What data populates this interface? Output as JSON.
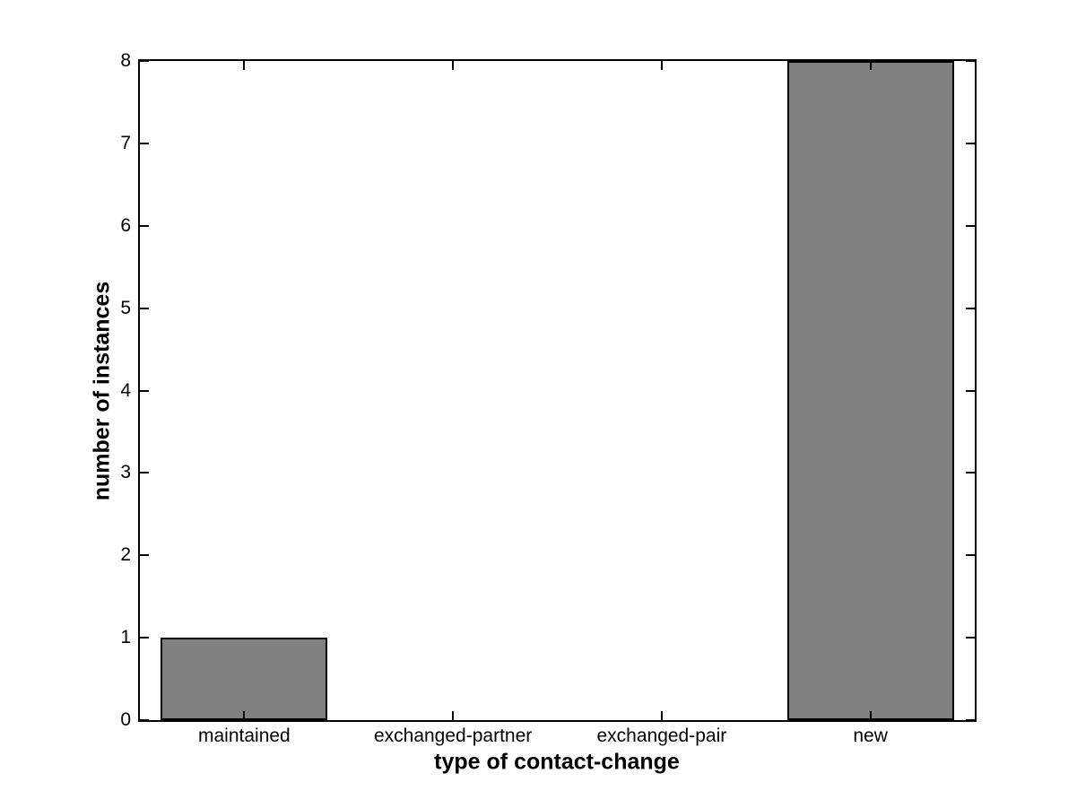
{
  "chart_data": {
    "type": "bar",
    "categories": [
      "maintained",
      "exchanged-partner",
      "exchanged-pair",
      "new"
    ],
    "values": [
      1,
      0,
      0,
      8
    ],
    "title": "",
    "xlabel": "type of contact-change",
    "ylabel": "number of instances",
    "ylim": [
      0,
      8
    ],
    "yticks": [
      0,
      1,
      2,
      3,
      4,
      5,
      6,
      7,
      8
    ],
    "bar_width_fraction": 0.8,
    "bar_color": "#808080",
    "bar_edge_color": "#000000",
    "axis_color": "#000000",
    "background_color": "#ffffff",
    "grid": false,
    "legend": null
  }
}
